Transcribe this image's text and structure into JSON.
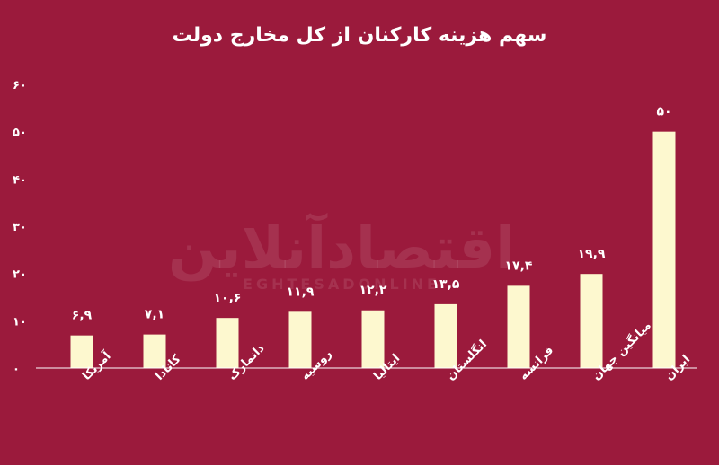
{
  "chart_data": {
    "type": "bar",
    "title": "سهم هزینه کارکنان از کل مخارج دولت",
    "categories": [
      "آمریکا",
      "کانادا",
      "دانمارک",
      "روسیه",
      "ایتالیا",
      "انگلستان",
      "فرانسه",
      "میانگین جهان",
      "ایران"
    ],
    "values": [
      6.9,
      7.1,
      10.6,
      11.9,
      12.2,
      13.5,
      17.4,
      19.9,
      50
    ],
    "value_labels": [
      "۶,۹",
      "۷,۱",
      "۱۰,۶",
      "۱۱,۹",
      "۱۲,۲",
      "۱۳,۵",
      "۱۷,۴",
      "۱۹,۹",
      "۵۰"
    ],
    "y_ticks": [
      0,
      10,
      20,
      30,
      40,
      50,
      60
    ],
    "y_tick_labels": [
      "۰",
      "۱۰",
      "۲۰",
      "۳۰",
      "۴۰",
      "۵۰",
      "۶۰"
    ],
    "ylim": [
      0,
      60
    ],
    "xlabel": "",
    "ylabel": "",
    "grid": false,
    "legend": "none",
    "colors": {
      "background": "#9b1a3c",
      "bar": "#fdf8cf",
      "text": "#ffffff",
      "axis": "#ffffff"
    }
  },
  "watermark": {
    "main": "اقتصادآنلاین",
    "sub": "EGHTESADONLINE"
  }
}
